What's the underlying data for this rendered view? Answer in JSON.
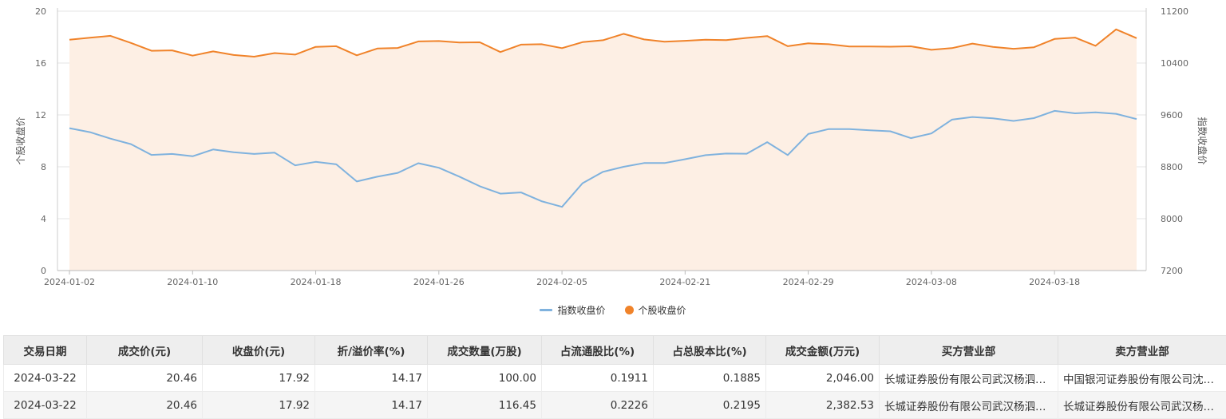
{
  "chart_data": {
    "type": "line",
    "x": [
      "2024-01-02",
      "2024-01-03",
      "2024-01-04",
      "2024-01-05",
      "2024-01-08",
      "2024-01-09",
      "2024-01-10",
      "2024-01-11",
      "2024-01-12",
      "2024-01-15",
      "2024-01-16",
      "2024-01-17",
      "2024-01-18",
      "2024-01-19",
      "2024-01-22",
      "2024-01-23",
      "2024-01-24",
      "2024-01-25",
      "2024-01-26",
      "2024-01-29",
      "2024-01-30",
      "2024-01-31",
      "2024-02-01",
      "2024-02-02",
      "2024-02-05",
      "2024-02-06",
      "2024-02-07",
      "2024-02-08",
      "2024-02-19",
      "2024-02-20",
      "2024-02-21",
      "2024-02-22",
      "2024-02-23",
      "2024-02-26",
      "2024-02-27",
      "2024-02-28",
      "2024-02-29",
      "2024-03-01",
      "2024-03-04",
      "2024-03-05",
      "2024-03-06",
      "2024-03-07",
      "2024-03-08",
      "2024-03-11",
      "2024-03-12",
      "2024-03-13",
      "2024-03-14",
      "2024-03-15",
      "2024-03-18",
      "2024-03-19",
      "2024-03-20",
      "2024-03-21",
      "2024-03-22"
    ],
    "x_tick_labels": [
      "2024-01-02",
      "2024-01-10",
      "2024-01-18",
      "2024-01-26",
      "2024-02-05",
      "2024-02-21",
      "2024-02-29",
      "2024-03-08",
      "2024-03-18"
    ],
    "series": [
      {
        "name": "指数收盘价",
        "axis": "right",
        "color": "#7fb2de",
        "values": [
          9396,
          9334,
          9235,
          9149,
          8983,
          8998,
          8963,
          9067,
          9024,
          8998,
          9018,
          8822,
          8876,
          8838,
          8573,
          8648,
          8706,
          8855,
          8785,
          8649,
          8500,
          8387,
          8405,
          8269,
          8182,
          8546,
          8723,
          8800,
          8858,
          8858,
          8917,
          8980,
          9004,
          9002,
          9180,
          8981,
          9306,
          9382,
          9382,
          9362,
          9348,
          9242,
          9314,
          9528,
          9568,
          9548,
          9508,
          9551,
          9663,
          9625,
          9640,
          9617,
          9536
        ]
      },
      {
        "name": "个股收盘价",
        "axis": "left",
        "color": "#f0832a",
        "values": [
          17.8,
          17.95,
          18.1,
          17.55,
          16.95,
          16.98,
          16.57,
          16.9,
          16.62,
          16.49,
          16.77,
          16.65,
          17.25,
          17.3,
          16.6,
          17.12,
          17.16,
          17.67,
          17.7,
          17.58,
          17.6,
          16.85,
          17.42,
          17.45,
          17.15,
          17.61,
          17.76,
          18.25,
          17.82,
          17.65,
          17.72,
          17.8,
          17.77,
          17.94,
          18.08,
          17.3,
          17.52,
          17.45,
          17.28,
          17.28,
          17.26,
          17.29,
          17.02,
          17.15,
          17.5,
          17.25,
          17.1,
          17.22,
          17.86,
          17.96,
          17.33,
          18.6,
          17.92
        ]
      }
    ],
    "ylabel": "个股收盘价",
    "ylim": [
      0,
      20
    ],
    "y_ticks": [
      0,
      4,
      8,
      12,
      16,
      20
    ],
    "y2label": "指数收盘价",
    "y2lim": [
      7200,
      11200
    ],
    "y2_ticks": [
      7200,
      8000,
      8800,
      9600,
      10400,
      11200
    ],
    "grid": true,
    "legend_placement": "bottom-center",
    "fill_under_series": "个股收盘价",
    "fill_color": "#fdefe4"
  },
  "legend": {
    "index_label": "指数收盘价",
    "stock_label": "个股收盘价"
  },
  "table": {
    "headers": [
      "交易日期",
      "成交价(元)",
      "收盘价(元)",
      "折/溢价率(%)",
      "成交数量(万股)",
      "占流通股比(%)",
      "占总股本比(%)",
      "成交金额(万元)",
      "买方营业部",
      "卖方营业部"
    ],
    "rows": [
      [
        "2024-03-22",
        "20.46",
        "17.92",
        "14.17",
        "100.00",
        "0.1911",
        "0.1885",
        "2,046.00",
        "长城证券股份有限公司武汉杨泗港快速路证券营业部",
        "中国银河证券股份有限公司沈阳北京街证券营业部"
      ],
      [
        "2024-03-22",
        "20.46",
        "17.92",
        "14.17",
        "116.45",
        "0.2226",
        "0.2195",
        "2,382.53",
        "长城证券股份有限公司武汉杨泗港快速路证券营业部",
        "长城证券股份有限公司武汉杨泗港快速路证券营业部"
      ]
    ]
  }
}
